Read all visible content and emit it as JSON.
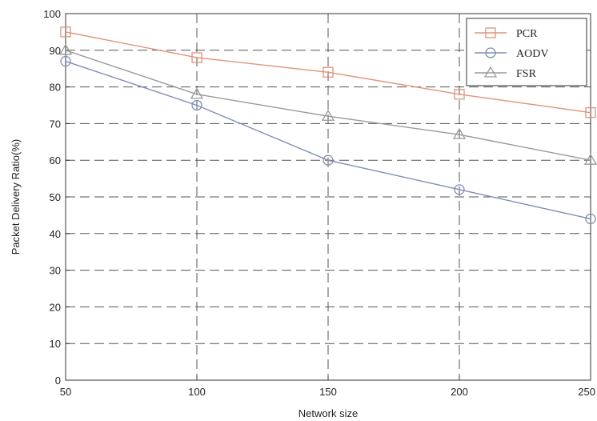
{
  "chart_data": {
    "type": "line",
    "title": "",
    "xlabel": "Network size",
    "ylabel": "Packet Delivery Ratio(%)",
    "x": [
      50,
      100,
      150,
      200,
      250
    ],
    "xlim": [
      50,
      250
    ],
    "ylim": [
      0,
      100
    ],
    "xticks": [
      "50",
      "100",
      "150",
      "200",
      "250"
    ],
    "yticks": [
      "0",
      "10",
      "20",
      "30",
      "40",
      "50",
      "60",
      "70",
      "80",
      "90",
      "100"
    ],
    "grid": true,
    "legend_position": "top-right",
    "series": [
      {
        "name": "PCR",
        "marker": "square",
        "color": "#e0937a",
        "values": [
          95,
          88,
          84,
          78,
          73
        ]
      },
      {
        "name": "AODV",
        "marker": "circle",
        "color": "#7f8fb4",
        "values": [
          87,
          75,
          60,
          52,
          44
        ]
      },
      {
        "name": "FSR",
        "marker": "triangle",
        "color": "#9a9a9a",
        "values": [
          90,
          78,
          72,
          67,
          60
        ]
      }
    ]
  }
}
